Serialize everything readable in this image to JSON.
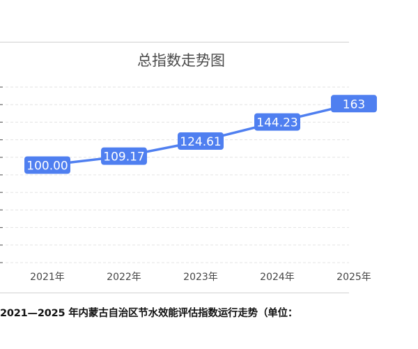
{
  "caption": "2021—2025 年内蒙古自治区节水效能评估指数运行走势（单位：",
  "chart_data": {
    "type": "line",
    "title": "总指数走势图",
    "categories": [
      "2021年",
      "2022年",
      "2023年",
      "2024年",
      "2025年"
    ],
    "series": [
      {
        "values": [
          100.0,
          109.17,
          124.61,
          144.23,
          163.0
        ],
        "labels": [
          "100.00",
          "109.17",
          "124.61",
          "144.23",
          "163"
        ]
      }
    ],
    "ylim": [
      0,
      180
    ],
    "grid": true,
    "line_color": "#4f7ff0",
    "label_bg_color": "#4f7ff0",
    "label_text_color": "#ffffff"
  }
}
